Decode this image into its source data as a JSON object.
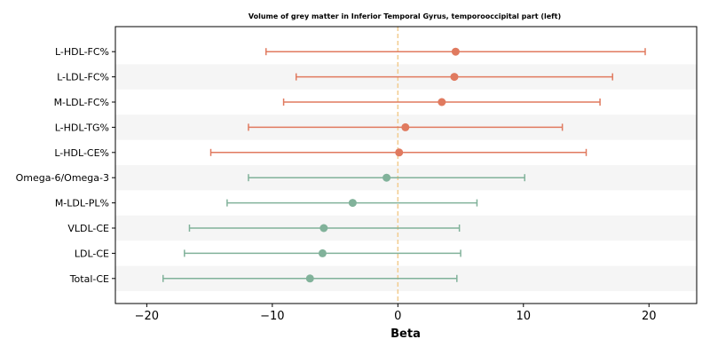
{
  "chart_data": {
    "type": "scatter",
    "title": "Volume of grey matter in Inferior Temporal Gyrus, temporooccipital part (left)",
    "xlabel": "Beta",
    "ylabel": "",
    "xlim": [
      -22.5,
      23.8
    ],
    "xticks": [
      -20,
      -10,
      0,
      10,
      20
    ],
    "xtick_labels": [
      "−20",
      "−10",
      "0",
      "10",
      "20"
    ],
    "reference_line": 0,
    "colors": {
      "positive": "#E07A5F",
      "negative": "#81B29A",
      "reference": "#F2CC8F",
      "stripe": "#F5F5F5"
    },
    "categories": [
      "L-HDL-FC%",
      "L-LDL-FC%",
      "M-LDL-FC%",
      "L-HDL-TG%",
      "L-HDL-CE%",
      "Omega-6/Omega-3",
      "M-LDL-PL%",
      "VLDL-CE",
      "LDL-CE",
      "Total-CE"
    ],
    "points": [
      {
        "label": "L-HDL-FC%",
        "beta": 4.6,
        "lower": -10.5,
        "upper": 19.7
      },
      {
        "label": "L-LDL-FC%",
        "beta": 4.5,
        "lower": -8.1,
        "upper": 17.1
      },
      {
        "label": "M-LDL-FC%",
        "beta": 3.5,
        "lower": -9.1,
        "upper": 16.1
      },
      {
        "label": "L-HDL-TG%",
        "beta": 0.6,
        "lower": -11.9,
        "upper": 13.1
      },
      {
        "label": "L-HDL-CE%",
        "beta": 0.1,
        "lower": -14.9,
        "upper": 15.0
      },
      {
        "label": "Omega-6/Omega-3",
        "beta": -0.9,
        "lower": -11.9,
        "upper": 10.1
      },
      {
        "label": "M-LDL-PL%",
        "beta": -3.6,
        "lower": -13.6,
        "upper": 6.3
      },
      {
        "label": "VLDL-CE",
        "beta": -5.9,
        "lower": -16.6,
        "upper": 4.9
      },
      {
        "label": "LDL-CE",
        "beta": -6.0,
        "lower": -17.0,
        "upper": 5.0
      },
      {
        "label": "Total-CE",
        "beta": -7.0,
        "lower": -18.7,
        "upper": 4.7
      }
    ]
  }
}
